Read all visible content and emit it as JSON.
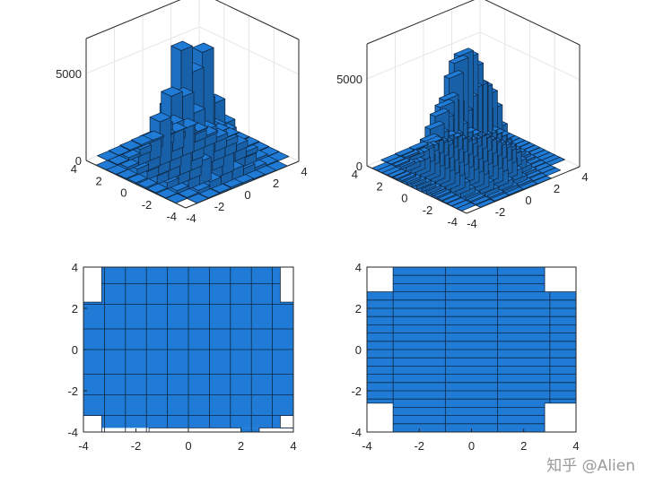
{
  "chart_data": [
    {
      "type": "bar3",
      "bar_color": "#1f7bd6",
      "edge_color": "#0f2742",
      "x_range": [
        -4,
        4
      ],
      "y_range": [
        -4,
        4
      ],
      "z_range": [
        0,
        7000
      ],
      "x_ticks": [
        "-4",
        "-2",
        "0",
        "2",
        "4"
      ],
      "y_ticks": [
        "4",
        "2",
        "0",
        "-2",
        "-4"
      ],
      "z_ticks": [
        "0",
        "5000"
      ],
      "x_edges": [
        -4,
        -3.2,
        -2.4,
        -1.6,
        -0.8,
        0,
        0.8,
        1.6,
        2.4,
        3.2,
        4
      ],
      "y_edges": [
        -4,
        -3.2,
        -2.4,
        -1.6,
        -0.8,
        0,
        0.8,
        1.6,
        2.4,
        3.2,
        4
      ],
      "heights": [
        [
          0,
          10,
          40,
          80,
          120,
          100,
          60,
          25,
          5,
          0
        ],
        [
          10,
          60,
          200,
          420,
          600,
          560,
          380,
          160,
          40,
          5
        ],
        [
          30,
          180,
          600,
          1300,
          1900,
          1750,
          1150,
          480,
          130,
          20
        ],
        [
          60,
          360,
          1250,
          2700,
          4000,
          3700,
          2400,
          1000,
          280,
          40
        ],
        [
          80,
          480,
          1700,
          3700,
          5600,
          6500,
          3300,
          1400,
          380,
          60
        ],
        [
          80,
          460,
          1650,
          3550,
          6600,
          5100,
          3150,
          1350,
          360,
          55
        ],
        [
          55,
          330,
          1150,
          2500,
          3700,
          3400,
          2200,
          950,
          260,
          40
        ],
        [
          25,
          150,
          540,
          1150,
          1700,
          1550,
          1000,
          430,
          115,
          15
        ],
        [
          5,
          45,
          170,
          370,
          540,
          500,
          330,
          140,
          35,
          5
        ],
        [
          0,
          8,
          35,
          70,
          110,
          95,
          60,
          25,
          5,
          0
        ]
      ]
    },
    {
      "type": "bar3",
      "bar_color": "#1f7bd6",
      "edge_color": "#0f2742",
      "x_range": [
        -4,
        4
      ],
      "y_range": [
        -4,
        4
      ],
      "z_range": [
        0,
        7000
      ],
      "x_ticks": [
        "-4",
        "-2",
        "0",
        "2",
        "4"
      ],
      "y_ticks": [
        "4",
        "2",
        "0",
        "-2",
        "-4"
      ],
      "z_ticks": [
        "0",
        "5000"
      ],
      "x_edges": [
        -4,
        -3,
        -2,
        -1,
        0,
        1,
        2,
        3,
        4
      ],
      "y_edges": [
        -4,
        -3.6,
        -3.2,
        -2.8,
        -2.4,
        -2,
        -1.6,
        -1.2,
        -0.8,
        -0.4,
        0,
        0.4,
        0.8,
        1.2,
        1.6,
        2,
        2.4,
        2.8,
        3.2,
        3.6,
        4
      ],
      "heights": [
        [
          0,
          10,
          40,
          60,
          40,
          10,
          0,
          0
        ],
        [
          5,
          40,
          110,
          180,
          120,
          35,
          5,
          0
        ],
        [
          10,
          80,
          240,
          380,
          260,
          70,
          10,
          0
        ],
        [
          20,
          160,
          480,
          760,
          520,
          150,
          20,
          5
        ],
        [
          40,
          300,
          900,
          1400,
          960,
          270,
          40,
          5
        ],
        [
          70,
          520,
          1560,
          2450,
          1680,
          470,
          70,
          10
        ],
        [
          110,
          820,
          2450,
          3850,
          2650,
          740,
          110,
          15
        ],
        [
          150,
          1120,
          3350,
          5250,
          3600,
          1010,
          150,
          20
        ],
        [
          180,
          1330,
          3980,
          6200,
          4280,
          1200,
          180,
          25
        ],
        [
          190,
          1400,
          4200,
          6600,
          4500,
          1270,
          190,
          25
        ],
        [
          190,
          1380,
          4150,
          6650,
          4450,
          1250,
          185,
          25
        ],
        [
          175,
          1300,
          3900,
          6100,
          4200,
          1180,
          175,
          20
        ],
        [
          145,
          1080,
          3250,
          5100,
          3500,
          980,
          145,
          20
        ],
        [
          105,
          790,
          2380,
          3700,
          2550,
          720,
          105,
          15
        ],
        [
          70,
          510,
          1530,
          2400,
          1650,
          460,
          70,
          10
        ],
        [
          40,
          290,
          880,
          1380,
          950,
          265,
          40,
          5
        ],
        [
          20,
          150,
          460,
          730,
          500,
          140,
          20,
          5
        ],
        [
          10,
          75,
          220,
          350,
          240,
          65,
          10,
          0
        ],
        [
          5,
          35,
          100,
          160,
          110,
          30,
          5,
          0
        ],
        [
          0,
          10,
          35,
          55,
          35,
          10,
          0,
          0
        ]
      ]
    },
    {
      "type": "bar2-view",
      "bar_color": "#1f7bd6",
      "edge_color": "#0f2742",
      "x_range": [
        -4,
        4
      ],
      "y_range": [
        -4,
        4
      ],
      "x_ticks": [
        "-4",
        "-2",
        "0",
        "2",
        "4"
      ],
      "y_ticks": [
        "4",
        "2",
        "0",
        "-2",
        "-4"
      ],
      "x_edges": [
        -4,
        -3.2,
        -2.4,
        -1.6,
        -0.8,
        0,
        0.8,
        1.6,
        2.4,
        3.2,
        4
      ],
      "row_edges": [
        -4,
        -3.2,
        -2.2,
        -1.2,
        0,
        1,
        2.2,
        3.2,
        4
      ],
      "tiles": [
        [
          -4,
          4,
          -3.8,
          4
        ],
        [
          -3.3,
          -3.8,
          3.5,
          -3.2
        ],
        [
          2.0,
          2.7,
          -4,
          -3.8
        ],
        [
          -4,
          4,
          -3.2,
          2.3
        ],
        [
          -3.3,
          3.5,
          2.3,
          4
        ]
      ],
      "blanks": [
        [
          -4,
          -3.3,
          -4,
          -3.2
        ],
        [
          -1.5,
          2.0,
          -4,
          -3.8
        ],
        [
          2.7,
          4,
          -4,
          -3.8
        ],
        [
          3.5,
          4,
          -3.8,
          -3.2
        ],
        [
          -4,
          -3.3,
          2.3,
          4
        ],
        [
          3.5,
          4,
          2.3,
          4
        ]
      ]
    },
    {
      "type": "bar2-view",
      "bar_color": "#1f7bd6",
      "edge_color": "#0f2742",
      "x_range": [
        -4,
        4
      ],
      "y_range": [
        -4,
        4
      ],
      "x_ticks": [
        "-4",
        "-2",
        "0",
        "2",
        "4"
      ],
      "y_ticks": [
        "4",
        "2",
        "0",
        "-2",
        "-4"
      ],
      "x_edges": [
        -4,
        -3,
        -1,
        1,
        3,
        4
      ],
      "row_edges": [
        -4,
        -3.6,
        -3.2,
        -2.8,
        -2.4,
        -2,
        -1.6,
        -1.2,
        -0.8,
        -0.4,
        0,
        0.4,
        0.8,
        1.2,
        1.6,
        2,
        2.4,
        2.8,
        3.2,
        3.6,
        4
      ],
      "tiles": [
        [
          -3,
          2.8,
          -4,
          4
        ],
        [
          -4,
          4,
          -2.6,
          2.8
        ]
      ],
      "blanks": [
        [
          -4,
          -3,
          -4,
          -2.6
        ],
        [
          2.8,
          4,
          -4,
          -2.6
        ],
        [
          -4,
          -3,
          2.8,
          4
        ],
        [
          2.8,
          4,
          2.8,
          4
        ]
      ]
    }
  ],
  "watermark": "知乎 @Alien"
}
